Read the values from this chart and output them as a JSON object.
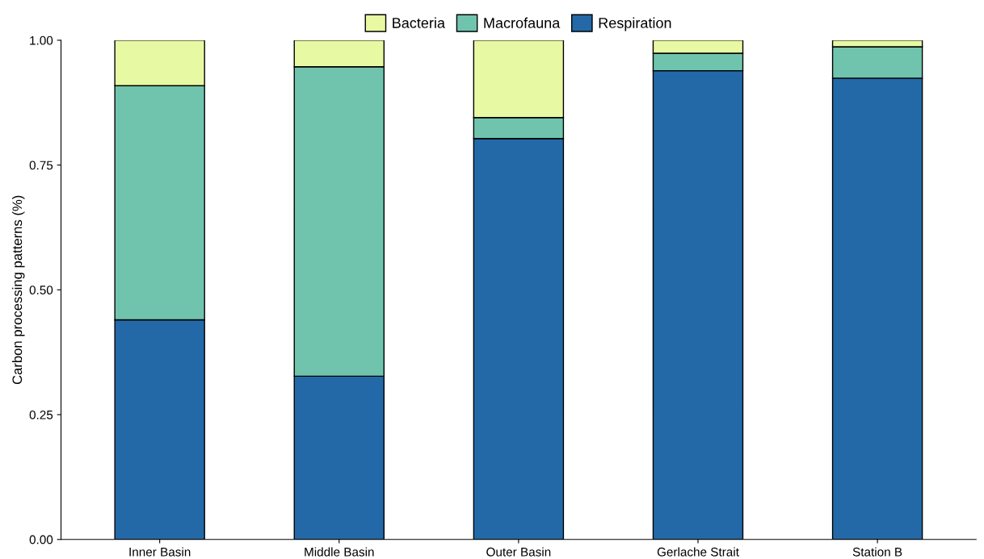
{
  "chart_data": {
    "type": "bar",
    "stacked": true,
    "ylabel": "Carbon processing patterns (%)",
    "categories": [
      "Inner Basin",
      "Middle Basin",
      "Outer Basin",
      "Gerlache Strait",
      "Station B"
    ],
    "series": [
      {
        "name": "Respiration",
        "color": "#2369a8",
        "values": [
          0.44,
          0.327,
          0.803,
          0.939,
          0.924
        ]
      },
      {
        "name": "Macrofauna",
        "color": "#70c4ad",
        "values": [
          0.469,
          0.62,
          0.042,
          0.035,
          0.063
        ]
      },
      {
        "name": "Bacteria",
        "color": "#e8f9a3",
        "values": [
          0.091,
          0.053,
          0.155,
          0.026,
          0.013
        ]
      }
    ],
    "ylim": [
      0,
      1.0
    ],
    "yticks": [
      {
        "value": 0,
        "label": "0.00"
      },
      {
        "value": 0.25,
        "label": "0.25"
      },
      {
        "value": 0.5,
        "label": "0.50"
      },
      {
        "value": 0.75,
        "label": "0.75"
      },
      {
        "value": 1.0,
        "label": "1.00"
      }
    ],
    "grid": false,
    "legend": "top"
  }
}
